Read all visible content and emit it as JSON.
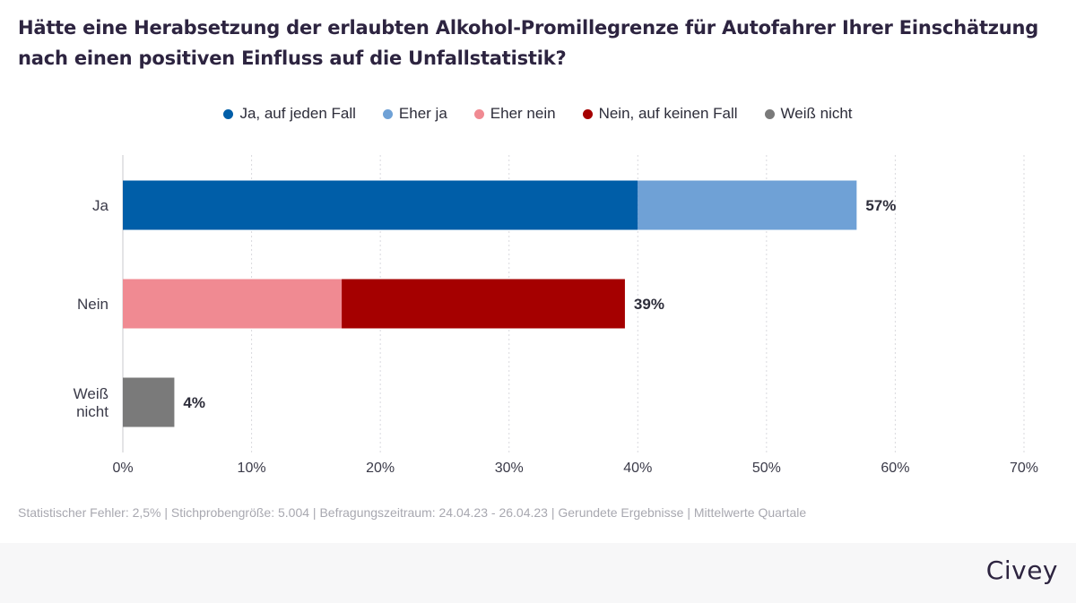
{
  "title": "Hätte eine Herabsetzung der erlaubten Alkohol-Promillegrenze für Autofahrer Ihrer Einschätzung nach einen positiven Einfluss auf die Unfallstatistik?",
  "legend": [
    {
      "label": "Ja, auf jeden Fall",
      "color": "#005ea8"
    },
    {
      "label": "Eher ja",
      "color": "#6fa1d6"
    },
    {
      "label": "Eher nein",
      "color": "#f08a92"
    },
    {
      "label": "Nein, auf keinen Fall",
      "color": "#a50000"
    },
    {
      "label": "Weiß nicht",
      "color": "#7a7a7a"
    }
  ],
  "chart_data": {
    "type": "bar",
    "orientation": "horizontal",
    "stacked": true,
    "categories": [
      "Ja",
      "Nein",
      "Weiß nicht"
    ],
    "category_lines": [
      [
        "Ja"
      ],
      [
        "Nein"
      ],
      [
        "Weiß",
        "nicht"
      ]
    ],
    "series": [
      {
        "name": "Ja, auf jeden Fall",
        "color": "#005ea8",
        "values": [
          40,
          0,
          0
        ]
      },
      {
        "name": "Eher ja",
        "color": "#6fa1d6",
        "values": [
          17,
          0,
          0
        ]
      },
      {
        "name": "Eher nein",
        "color": "#f08a92",
        "values": [
          0,
          17,
          0
        ]
      },
      {
        "name": "Nein, auf keinen Fall",
        "color": "#a50000",
        "values": [
          0,
          22,
          0
        ]
      },
      {
        "name": "Weiß nicht",
        "color": "#7a7a7a",
        "values": [
          0,
          0,
          4
        ]
      }
    ],
    "totals_labels": [
      "57%",
      "39%",
      "4%"
    ],
    "xlim": [
      0,
      70
    ],
    "xticks": [
      0,
      10,
      20,
      30,
      40,
      50,
      60,
      70
    ],
    "xtick_labels": [
      "0%",
      "10%",
      "20%",
      "30%",
      "40%",
      "50%",
      "60%",
      "70%"
    ],
    "grid": true,
    "legend_position": "top-center"
  },
  "footer": {
    "note": "Statistischer Fehler: 2,5% | Stichprobengröße: 5.004 | Befragungszeitraum: 24.04.23 - 26.04.23 | Gerundete Ergebnisse | Mittelwerte Quartale",
    "brand": "Civey"
  }
}
